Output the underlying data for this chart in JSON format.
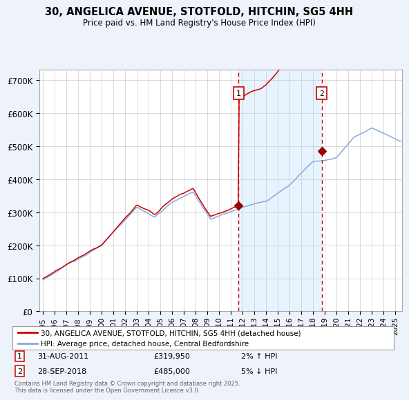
{
  "title": "30, ANGELICA AVENUE, STOTFOLD, HITCHIN, SG5 4HH",
  "subtitle": "Price paid vs. HM Land Registry's House Price Index (HPI)",
  "ylabel_ticks": [
    "£0",
    "£100K",
    "£200K",
    "£300K",
    "£400K",
    "£500K",
    "£600K",
    "£700K"
  ],
  "ytick_values": [
    0,
    100000,
    200000,
    300000,
    400000,
    500000,
    600000,
    700000
  ],
  "ylim": [
    0,
    730000
  ],
  "xlim_start": 1994.7,
  "xlim_end": 2025.6,
  "background_color": "#eef2fa",
  "plot_bg_color": "#ffffff",
  "sale1_date": 2011.667,
  "sale1_price": 319950,
  "sale1_label": "1",
  "sale2_date": 2018.75,
  "sale2_price": 485000,
  "sale2_label": "2",
  "legend_line1": "30, ANGELICA AVENUE, STOTFOLD, HITCHIN, SG5 4HH (detached house)",
  "legend_line2": "HPI: Average price, detached house, Central Bedfordshire",
  "footer": "Contains HM Land Registry data © Crown copyright and database right 2025.\nThis data is licensed under the Open Government Licence v3.0.",
  "line_color_red": "#cc0000",
  "line_color_blue": "#88aadd",
  "marker_color_red": "#990000",
  "grid_color": "#cccccc",
  "vline_color": "#cc0000",
  "shade_color": "#ddeeff",
  "xticks": [
    1995,
    1996,
    1997,
    1998,
    1999,
    2000,
    2001,
    2002,
    2003,
    2004,
    2005,
    2006,
    2007,
    2008,
    2009,
    2010,
    2011,
    2012,
    2013,
    2014,
    2015,
    2016,
    2017,
    2018,
    2019,
    2020,
    2021,
    2022,
    2023,
    2024,
    2025
  ]
}
